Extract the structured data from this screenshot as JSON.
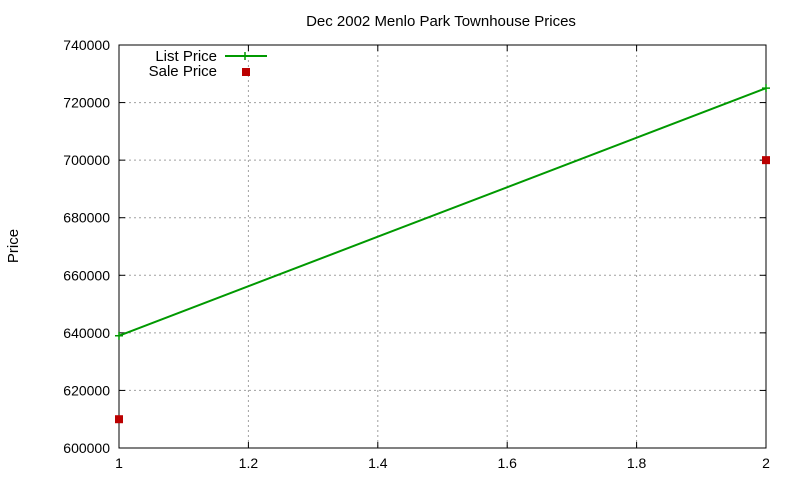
{
  "chart_data": {
    "type": "line",
    "title": "Dec 2002 Menlo Park Townhouse Prices",
    "xlabel": "",
    "ylabel": "Price",
    "xlim": [
      1,
      2
    ],
    "ylim": [
      600000,
      740000
    ],
    "x_ticks": [
      "1",
      "1.2",
      "1.4",
      "1.6",
      "1.8",
      "2"
    ],
    "y_ticks": [
      "600000",
      "620000",
      "640000",
      "660000",
      "680000",
      "700000",
      "720000",
      "740000"
    ],
    "grid": true,
    "legend_position": "top-left",
    "series": [
      {
        "name": "List Price",
        "style": "line-with-plus-markers",
        "color": "#009900",
        "points": [
          {
            "x": 1,
            "y": 639000
          },
          {
            "x": 2,
            "y": 725000
          }
        ]
      },
      {
        "name": "Sale Price",
        "style": "square-markers",
        "color": "#bb0000",
        "points": [
          {
            "x": 1,
            "y": 610000
          },
          {
            "x": 2,
            "y": 700000
          }
        ]
      }
    ]
  }
}
